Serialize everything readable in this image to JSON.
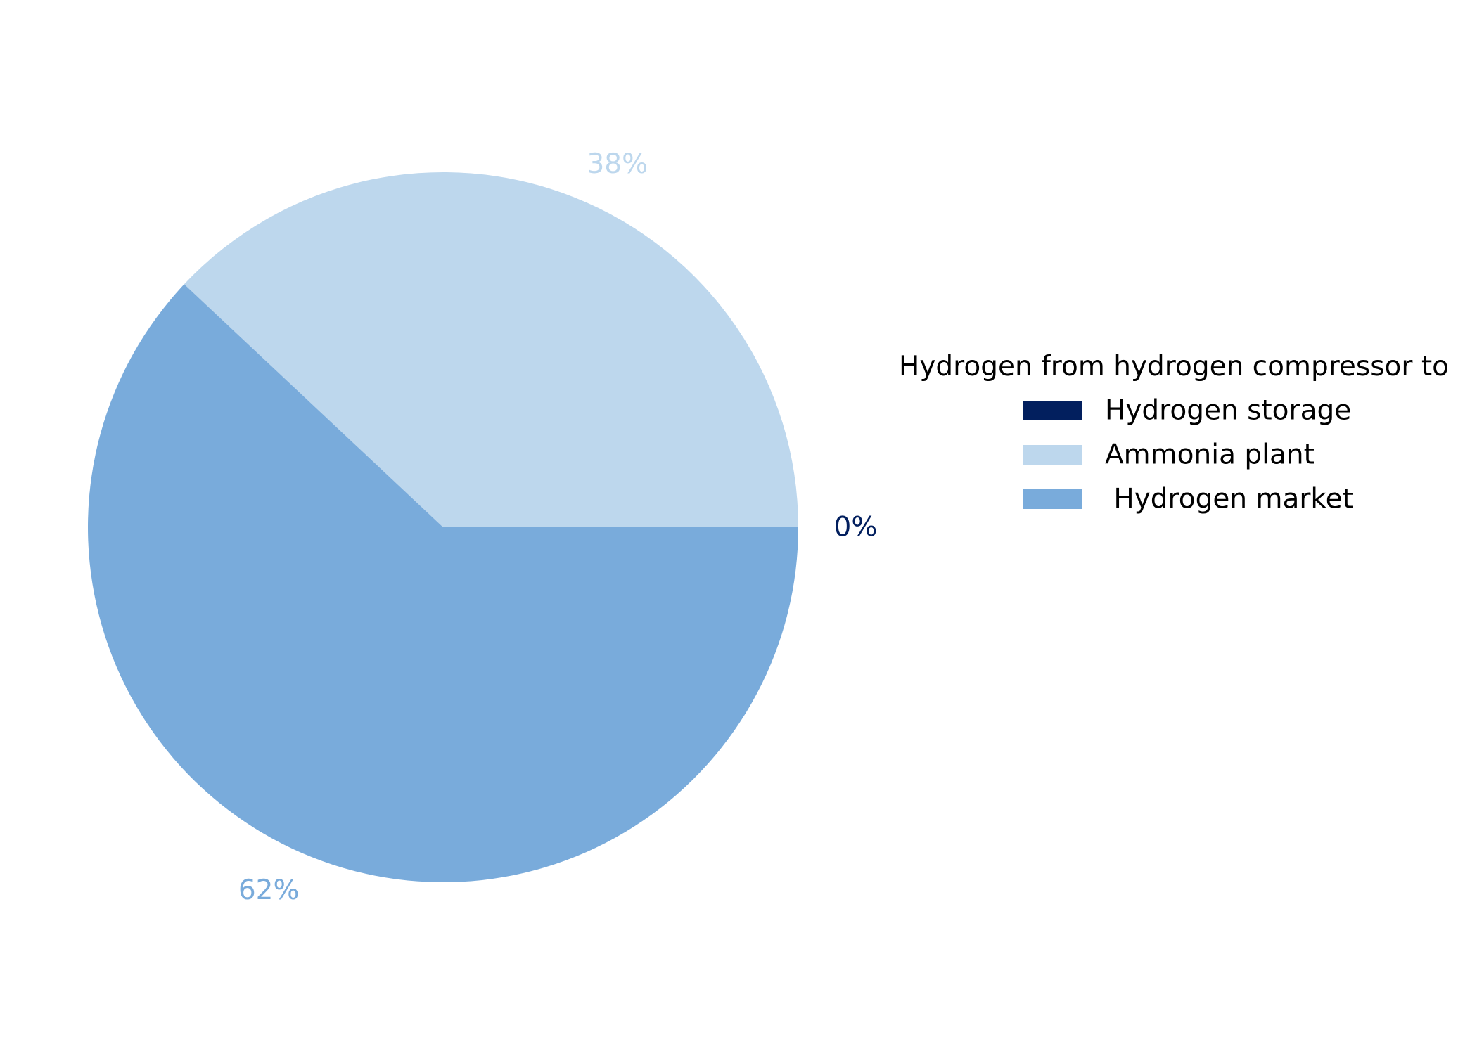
{
  "chart_data": {
    "type": "pie",
    "legend": {
      "title": "Hydrogen from hydrogen compressor to",
      "placement": "right"
    },
    "slices": [
      {
        "label": "Hydrogen storage",
        "value": 0,
        "pct_label": "0%",
        "color": "#021f5e"
      },
      {
        "label": "Ammonia plant",
        "value": 38,
        "pct_label": "38%",
        "color": "#bdd7ed"
      },
      {
        "label": " Hydrogen market",
        "value": 62,
        "pct_label": "62%",
        "color": "#79abdb"
      }
    ]
  }
}
